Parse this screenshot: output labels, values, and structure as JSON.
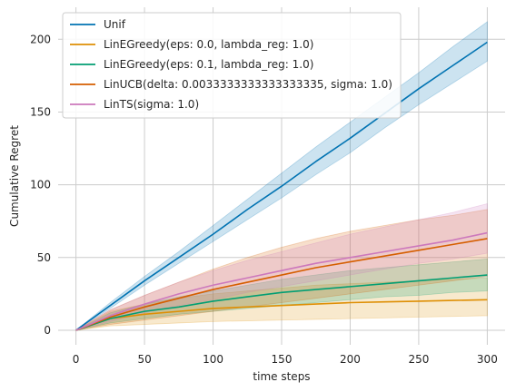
{
  "chart_data": {
    "type": "line",
    "title": "",
    "xlabel": "time steps",
    "ylabel": "Cumulative Regret",
    "xlim": [
      -13,
      313
    ],
    "ylim": [
      -10,
      222
    ],
    "xticks": [
      0,
      50,
      100,
      150,
      200,
      250,
      300
    ],
    "yticks": [
      0,
      50,
      100,
      150,
      200
    ],
    "grid": true,
    "legend_position": "top-left",
    "x": [
      0,
      25,
      50,
      75,
      100,
      125,
      150,
      175,
      200,
      225,
      250,
      275,
      300
    ],
    "series": [
      {
        "name": "Unif",
        "color": "#0173b2",
        "values": [
          0,
          17,
          34,
          50,
          66,
          83,
          99,
          116,
          132,
          149,
          166,
          182,
          198
        ],
        "lower": [
          0,
          15,
          31,
          46,
          61,
          76,
          91,
          107,
          122,
          139,
          155,
          170,
          185
        ],
        "upper": [
          0,
          19,
          37,
          54,
          72,
          90,
          108,
          126,
          143,
          160,
          177,
          195,
          212
        ]
      },
      {
        "name": "LinEGreedy(eps: 0.0, lambda_reg: 1.0)",
        "color": "#de8f05",
        "values": [
          0,
          8,
          11,
          13,
          15,
          16,
          17,
          18,
          19,
          19.5,
          20,
          20.5,
          21
        ],
        "lower": [
          0,
          3,
          4,
          5,
          6,
          6.5,
          7,
          7.5,
          8,
          8.5,
          9,
          9.5,
          10
        ],
        "upper": [
          0,
          13,
          18,
          22,
          25,
          27,
          29,
          31,
          32,
          33,
          34,
          35,
          36
        ]
      },
      {
        "name": "LinEGreedy(eps: 0.1, lambda_reg: 1.0)",
        "color": "#029e73",
        "values": [
          0,
          8,
          13,
          16,
          20,
          23,
          26,
          28,
          30,
          32,
          34,
          36,
          38
        ],
        "lower": [
          0,
          5,
          8,
          11,
          13,
          15,
          17,
          19,
          21,
          23,
          24,
          26,
          27
        ],
        "upper": [
          0,
          12,
          18,
          23,
          27,
          31,
          35,
          38,
          41,
          43,
          45,
          47,
          49
        ]
      },
      {
        "name": "LinUCB(delta: 0.0033333333333333335, sigma: 1.0)",
        "color": "#d55e00",
        "values": [
          0,
          9,
          16,
          22,
          28,
          33,
          38,
          43,
          47,
          51,
          55,
          59,
          63
        ],
        "lower": [
          0,
          4,
          7,
          10,
          13,
          16,
          19,
          22,
          25,
          28,
          31,
          34,
          37
        ],
        "upper": [
          0,
          14,
          24,
          33,
          42,
          50,
          57,
          63,
          68,
          72,
          76,
          79,
          83
        ]
      },
      {
        "name": "LinTS(sigma: 1.0)",
        "color": "#cc78bc",
        "values": [
          0,
          10,
          18,
          25,
          31,
          36,
          41,
          46,
          50,
          54,
          58,
          62,
          67
        ],
        "lower": [
          0,
          6,
          12,
          17,
          21,
          26,
          30,
          34,
          38,
          42,
          46,
          49,
          53
        ],
        "upper": [
          0,
          14,
          24,
          33,
          41,
          48,
          54,
          60,
          66,
          71,
          76,
          81,
          87
        ]
      }
    ]
  }
}
